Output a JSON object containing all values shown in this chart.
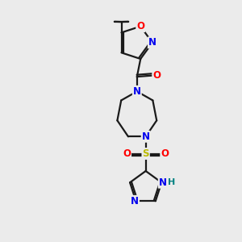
{
  "background_color": "#ebebeb",
  "bond_color": "#1a1a1a",
  "atom_colors": {
    "N": "#0000ee",
    "O": "#ff0000",
    "S": "#bbbb00",
    "H": "#008080",
    "C": "#1a1a1a"
  },
  "figsize": [
    3.0,
    3.0
  ],
  "dpi": 100
}
